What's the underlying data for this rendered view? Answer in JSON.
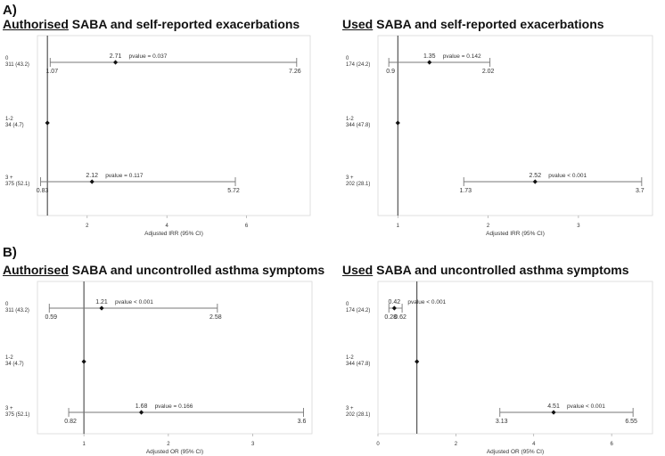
{
  "sections": [
    {
      "label": "A)"
    },
    {
      "label": "B)"
    }
  ],
  "chart_data": [
    {
      "type": "forest",
      "title_emphasis": "Authorised",
      "title_rest": " SABA and self-reported exacerbations",
      "xlabel": "Adjusted IRR (95% CI)",
      "xlim": [
        0.75,
        7.6
      ],
      "xticks": [
        2,
        4,
        6
      ],
      "reference": 1,
      "rows": [
        {
          "cat": "0",
          "n": "311 (43.2)",
          "est": 2.71,
          "lo": 1.07,
          "hi": 7.26,
          "est_label": "2.71",
          "lo_label": "1.07",
          "hi_label": "7.26",
          "p": "pvalue = 0.037"
        },
        {
          "cat": "1-2",
          "n": "34 (4.7)",
          "est": 1
        },
        {
          "cat": "3 +",
          "n": "375 (52.1)",
          "est": 2.12,
          "lo": 0.83,
          "hi": 5.72,
          "est_label": "2.12",
          "lo_label": "0.83",
          "hi_label": "5.72",
          "p": "pvalue = 0.117"
        }
      ]
    },
    {
      "type": "forest",
      "title_emphasis": "Used",
      "title_rest": " SABA and self-reported exacerbations",
      "xlabel": "Adjusted IRR (95% CI)",
      "xlim": [
        0.78,
        3.82
      ],
      "xticks": [
        1,
        2,
        3
      ],
      "reference": 1,
      "rows": [
        {
          "cat": "0",
          "n": "174 (24.2)",
          "est": 1.35,
          "lo": 0.9,
          "hi": 2.02,
          "est_label": "1.35",
          "lo_label": "0.9",
          "hi_label": "2.02",
          "p": "pvalue = 0.142"
        },
        {
          "cat": "1-2",
          "n": "344 (47.8)",
          "est": 1
        },
        {
          "cat": "3 +",
          "n": "202 (28.1)",
          "est": 2.52,
          "lo": 1.73,
          "hi": 3.7,
          "est_label": "2.52",
          "lo_label": "1.73",
          "hi_label": "3.7",
          "p": "pvalue < 0.001"
        }
      ]
    },
    {
      "type": "forest",
      "title_emphasis": "Authorised",
      "title_rest": " SABA and uncontrolled asthma symptoms",
      "xlabel": "Adjusted OR (95% CI)",
      "xlim": [
        0.45,
        3.7
      ],
      "xticks": [
        1,
        2,
        3
      ],
      "reference": 1,
      "rows": [
        {
          "cat": "0",
          "n": "311 (43.2)",
          "est": 1.21,
          "lo": 0.59,
          "hi": 2.58,
          "est_label": "1.21",
          "lo_label": "0.59",
          "hi_label": "2.58",
          "p": "pvalue < 0.001"
        },
        {
          "cat": "1-2",
          "n": "34 (4.7)",
          "est": 1
        },
        {
          "cat": "3 +",
          "n": "375 (52.1)",
          "est": 1.68,
          "lo": 0.82,
          "hi": 3.6,
          "est_label": "1.68",
          "lo_label": "0.82",
          "hi_label": "3.6",
          "p": "pvalue = 0.166"
        }
      ]
    },
    {
      "type": "forest",
      "title_emphasis": "Used",
      "title_rest": " SABA and uncontrolled asthma symptoms",
      "xlabel": "Adjusted OR (95% CI)",
      "xlim": [
        0,
        7.05
      ],
      "xticks": [
        0,
        2,
        4,
        6
      ],
      "reference": 1,
      "rows": [
        {
          "cat": "0",
          "n": "174 (24.2)",
          "est": 0.42,
          "lo": 0.28,
          "hi": 0.62,
          "est_label": "0.42",
          "lo_label": "0.28",
          "hi_label": "0.62",
          "p": "pvalue < 0.001"
        },
        {
          "cat": "1-2",
          "n": "344 (47.8)",
          "est": 1
        },
        {
          "cat": "3 +",
          "n": "202 (28.1)",
          "est": 4.51,
          "lo": 3.13,
          "hi": 6.55,
          "est_label": "4.51",
          "lo_label": "3.13",
          "hi_label": "6.55",
          "p": "pvalue < 0.001"
        }
      ]
    }
  ]
}
